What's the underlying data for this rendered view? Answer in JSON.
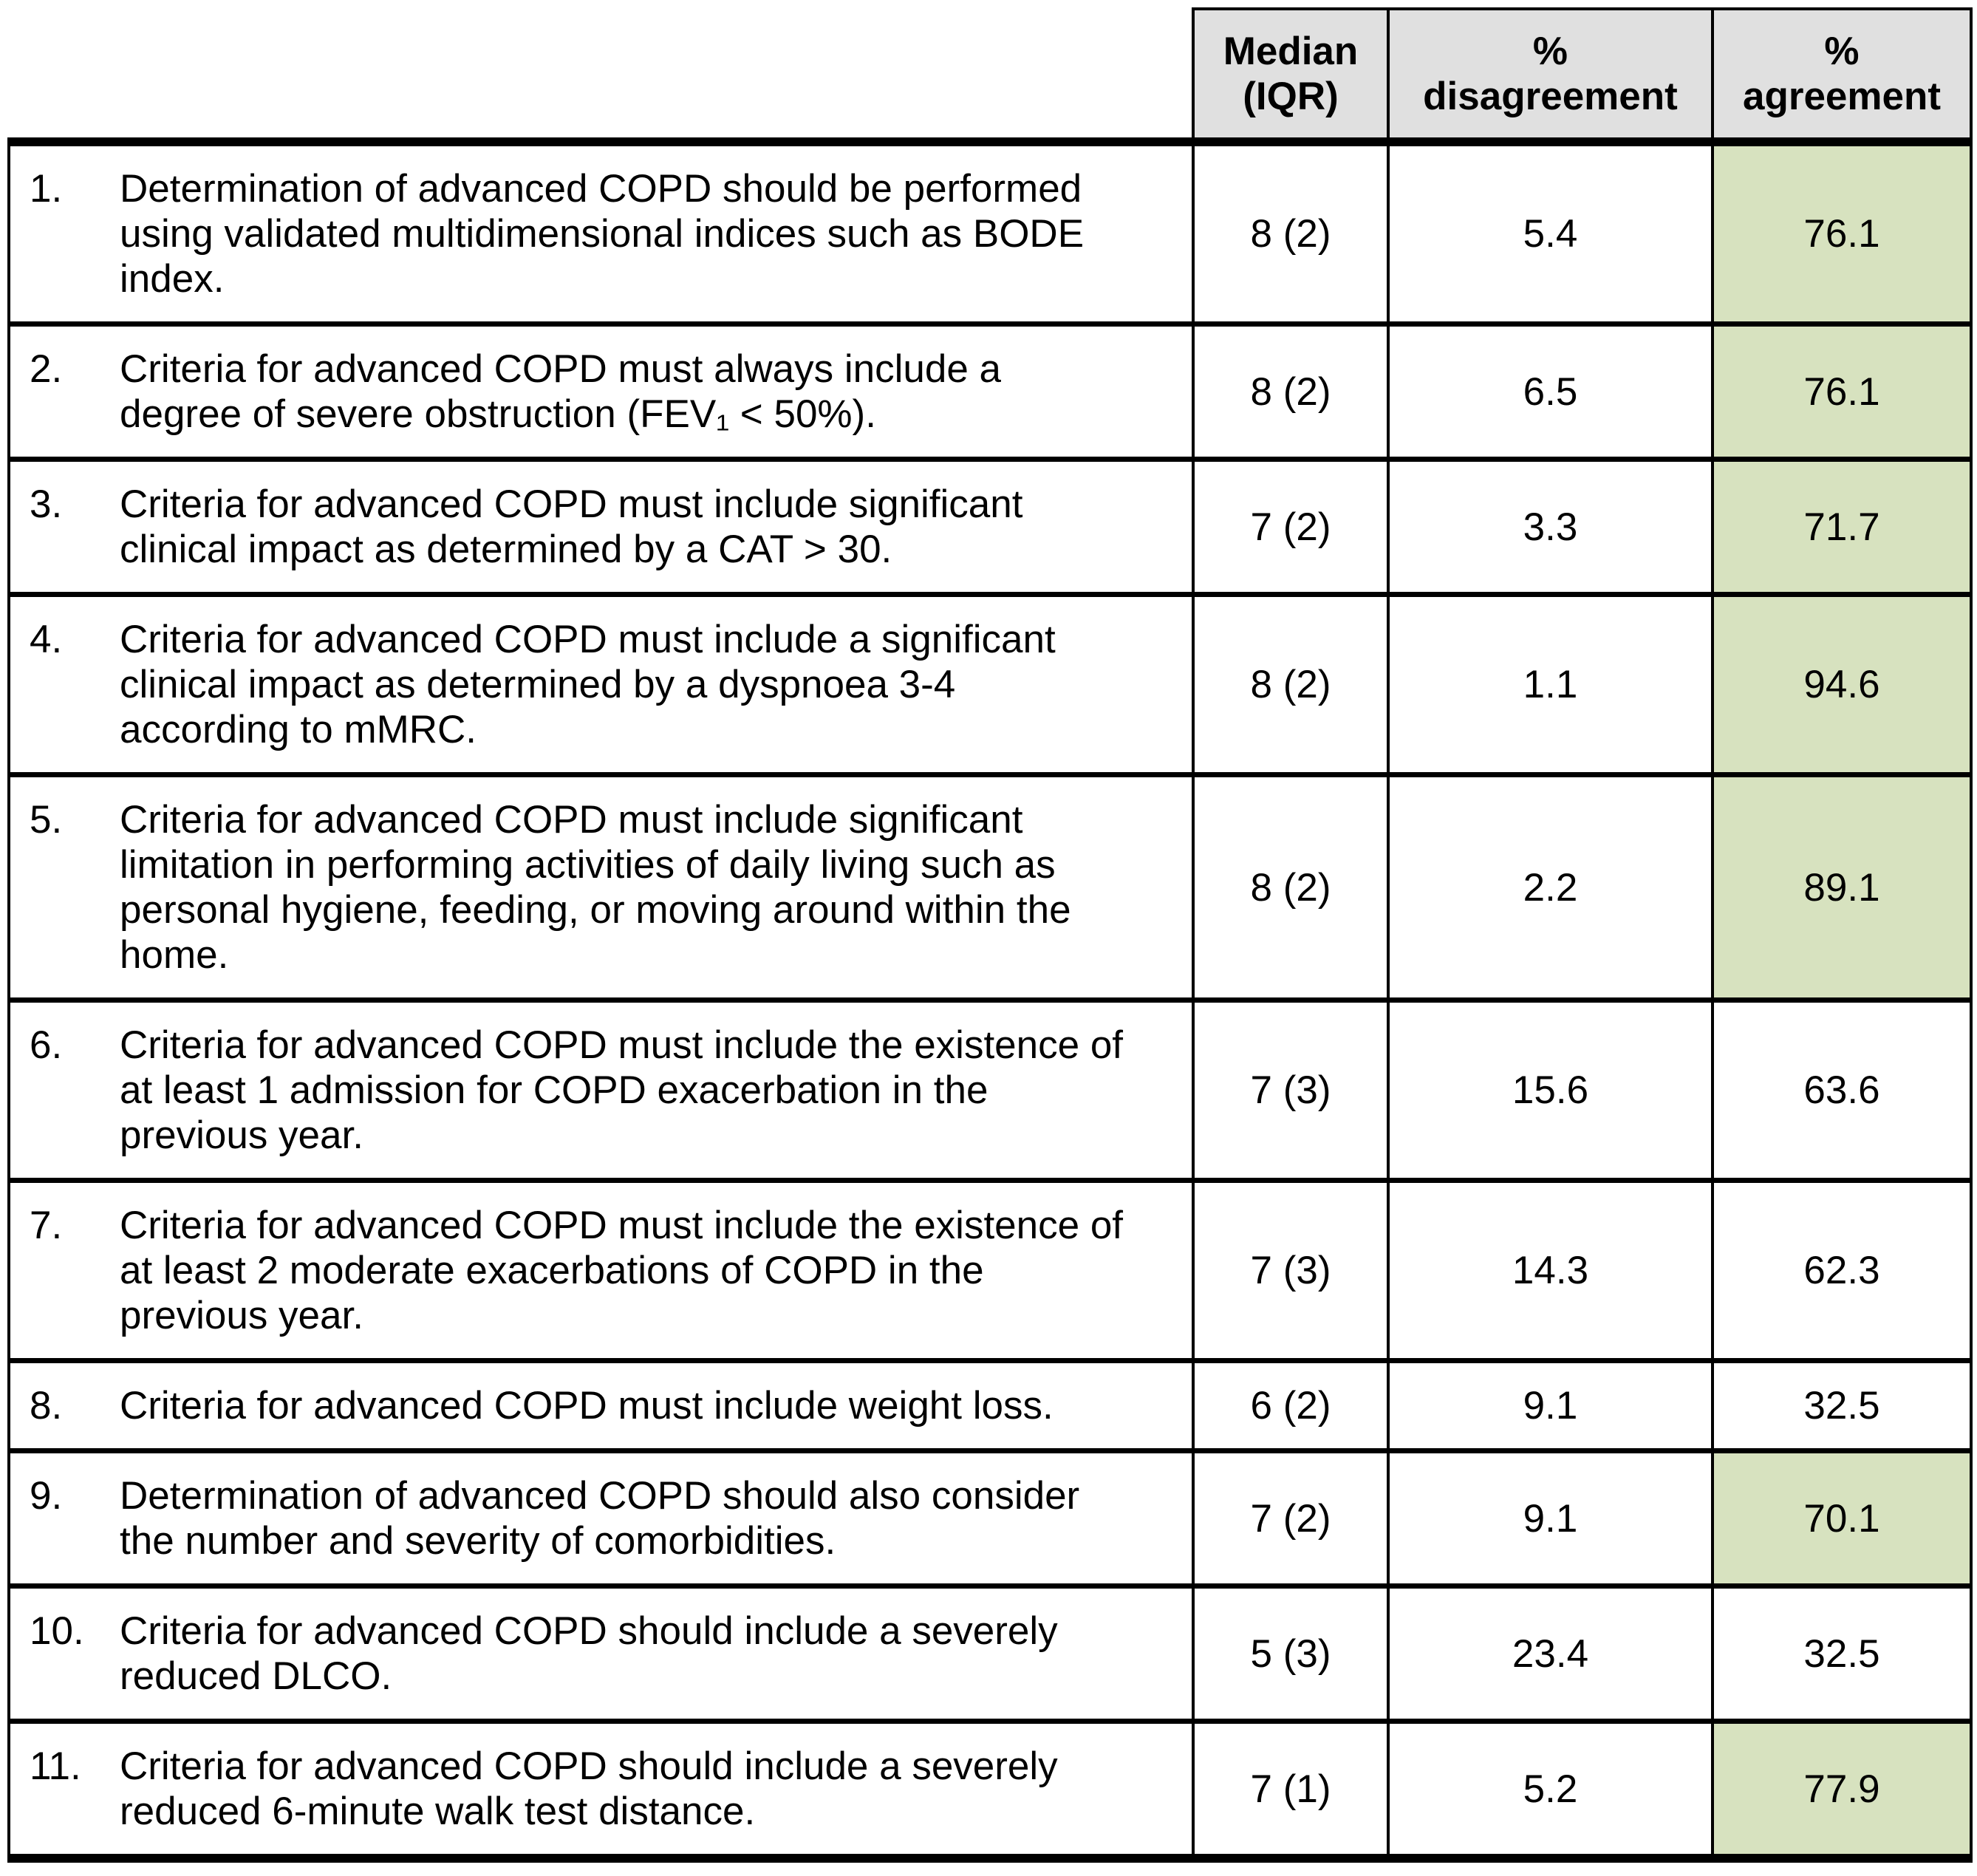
{
  "table": {
    "header": {
      "median_label": "Median (IQR)",
      "disagreement_label": "% disagreement",
      "agreement_label": "% agreement"
    },
    "rows": [
      {
        "number": "1.",
        "statement": "Determination of advanced COPD should be performed using validated multidimensional indices such as BODE index.",
        "median_iqr": "8 (2)",
        "disagreement": "5.4",
        "agreement": "76.1",
        "agreement_highlighted": true
      },
      {
        "number": "2.",
        "statement": "Criteria for advanced COPD must always include a degree of severe obstruction (FEV₁ < 50%).",
        "median_iqr": "8 (2)",
        "disagreement": "6.5",
        "agreement": "76.1",
        "agreement_highlighted": true
      },
      {
        "number": "3.",
        "statement": "Criteria for advanced COPD must include significant clinical impact as determined by a CAT > 30.",
        "median_iqr": "7 (2)",
        "disagreement": "3.3",
        "agreement": "71.7",
        "agreement_highlighted": true
      },
      {
        "number": "4.",
        "statement": "Criteria for advanced COPD must include a significant clinical impact as determined by a dyspnoea 3-4 according to mMRC.",
        "median_iqr": "8 (2)",
        "disagreement": "1.1",
        "agreement": "94.6",
        "agreement_highlighted": true
      },
      {
        "number": "5.",
        "statement": "Criteria for advanced COPD must include significant limitation in performing activities of daily living such as personal hygiene, feeding, or moving around within the home.",
        "median_iqr": "8 (2)",
        "disagreement": "2.2",
        "agreement": "89.1",
        "agreement_highlighted": true
      },
      {
        "number": "6.",
        "statement": "Criteria for advanced COPD must include the existence of at least 1 admission for COPD exacerbation in the previous year.",
        "median_iqr": "7 (3)",
        "disagreement": "15.6",
        "agreement": "63.6",
        "agreement_highlighted": false
      },
      {
        "number": "7.",
        "statement": "Criteria for advanced COPD must include the existence of at least 2 moderate exacerbations of COPD in the previous year.",
        "median_iqr": "7 (3)",
        "disagreement": "14.3",
        "agreement": "62.3",
        "agreement_highlighted": false
      },
      {
        "number": "8.",
        "statement": "Criteria for advanced COPD must include weight loss.",
        "median_iqr": "6 (2)",
        "disagreement": "9.1",
        "agreement": "32.5",
        "agreement_highlighted": false
      },
      {
        "number": "9.",
        "statement": "Determination of advanced COPD should also consider the number and severity of comorbidities.",
        "median_iqr": "7 (2)",
        "disagreement": "9.1",
        "agreement": "70.1",
        "agreement_highlighted": true
      },
      {
        "number": "10.",
        "statement": "Criteria for advanced COPD should include a severely reduced DLCO.",
        "median_iqr": "5 (3)",
        "disagreement": "23.4",
        "agreement": "32.5",
        "agreement_highlighted": false
      },
      {
        "number": "11.",
        "statement": "Criteria for advanced COPD should include a severely reduced 6-minute walk test distance.",
        "median_iqr": "7 (1)",
        "disagreement": "5.2",
        "agreement": "77.9",
        "agreement_highlighted": true
      }
    ]
  },
  "colors": {
    "header_bg": "#e0e0e0",
    "agreement_highlight": "#d7e2bf",
    "border": "#000000"
  },
  "chart_data": {
    "type": "table",
    "title": "",
    "columns": [
      "Statement",
      "Median (IQR)",
      "% disagreement",
      "% agreement"
    ],
    "rows": [
      [
        "1. Determination of advanced COPD should be performed using validated multidimensional indices such as BODE index.",
        "8 (2)",
        5.4,
        76.1
      ],
      [
        "2. Criteria for advanced COPD must always include a degree of severe obstruction (FEV₁ < 50%).",
        "8 (2)",
        6.5,
        76.1
      ],
      [
        "3. Criteria for advanced COPD must include significant clinical impact as determined by a CAT > 30.",
        "7 (2)",
        3.3,
        71.7
      ],
      [
        "4. Criteria for advanced COPD must include a significant clinical impact as determined by a dyspnoea 3-4 according to mMRC.",
        "8 (2)",
        1.1,
        94.6
      ],
      [
        "5. Criteria for advanced COPD must include significant limitation in performing activities of daily living such as personal hygiene, feeding, or moving around within the home.",
        "8 (2)",
        2.2,
        89.1
      ],
      [
        "6. Criteria for advanced COPD must include the existence of at least 1 admission for COPD exacerbation in the previous year.",
        "7 (3)",
        15.6,
        63.6
      ],
      [
        "7. Criteria for advanced COPD must include the existence of at least 2 moderate exacerbations of COPD in the previous year.",
        "7 (3)",
        14.3,
        62.3
      ],
      [
        "8. Criteria for advanced COPD must include weight loss.",
        "6 (2)",
        9.1,
        32.5
      ],
      [
        "9. Determination of advanced COPD should also consider the number and severity of comorbidities.",
        "7 (2)",
        9.1,
        70.1
      ],
      [
        "10. Criteria for advanced COPD should include a severely reduced DLCO.",
        "5 (3)",
        23.4,
        32.5
      ],
      [
        "11. Criteria for advanced COPD should include a severely reduced 6-minute walk test distance.",
        "7 (1)",
        5.2,
        77.9
      ]
    ]
  }
}
